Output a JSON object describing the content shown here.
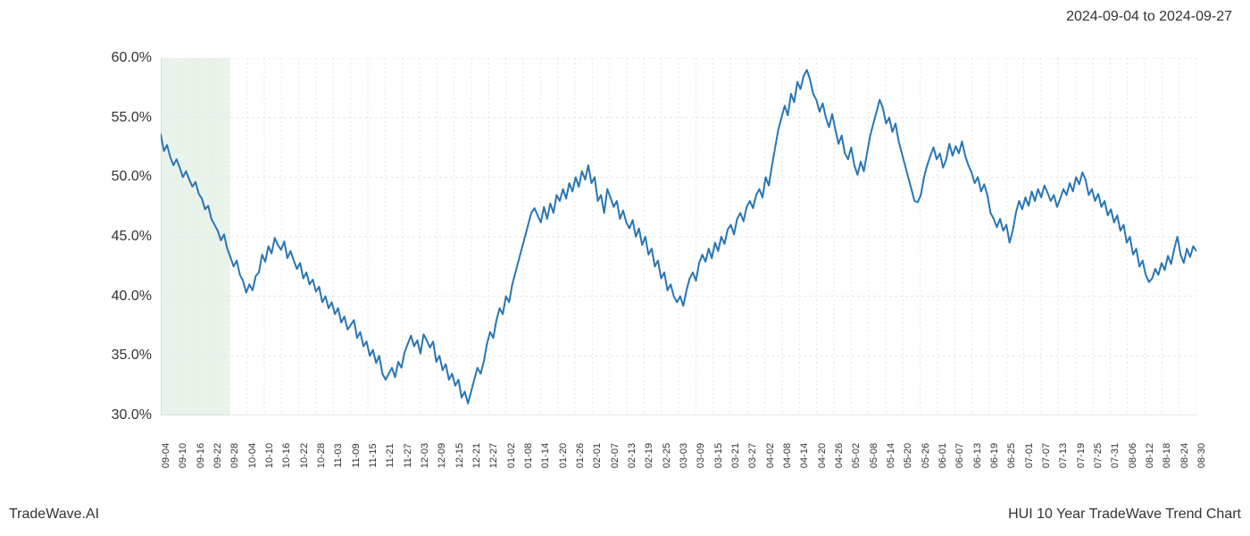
{
  "header": {
    "date_range": "2024-09-04 to 2024-09-27"
  },
  "footer": {
    "left": "TradeWave.AI",
    "right": "HUI 10 Year TradeWave Trend Chart"
  },
  "chart": {
    "type": "line",
    "line_color": "#2875b5",
    "line_width": 2,
    "background_color": "#ffffff",
    "grid_color": "#e6e6e6",
    "highlight_band_color": "#d9e9d8",
    "highlight_band_opacity": 0.55,
    "highlight_start_idx": 0,
    "highlight_end_idx": 4,
    "y_axis": {
      "min": 30.0,
      "max": 60.0,
      "tick_step": 5.0,
      "ticks": [
        30.0,
        35.0,
        40.0,
        45.0,
        50.0,
        55.0,
        60.0
      ],
      "tick_labels": [
        "30.0%",
        "35.0%",
        "40.0%",
        "45.0%",
        "50.0%",
        "55.0%",
        "60.0%"
      ],
      "label_fontsize": 16
    },
    "x_axis": {
      "labels": [
        "09-04",
        "09-10",
        "09-16",
        "09-22",
        "09-28",
        "10-04",
        "10-10",
        "10-16",
        "10-22",
        "10-28",
        "11-03",
        "11-09",
        "11-15",
        "11-21",
        "11-27",
        "12-03",
        "12-09",
        "12-15",
        "12-21",
        "12-27",
        "01-02",
        "01-08",
        "01-14",
        "01-20",
        "01-26",
        "02-01",
        "02-07",
        "02-13",
        "02-19",
        "02-25",
        "03-03",
        "03-09",
        "03-15",
        "03-21",
        "03-27",
        "04-02",
        "04-08",
        "04-14",
        "04-20",
        "04-26",
        "05-02",
        "05-08",
        "05-14",
        "05-20",
        "05-26",
        "06-01",
        "06-07",
        "06-13",
        "06-19",
        "06-25",
        "07-01",
        "07-07",
        "07-13",
        "07-19",
        "07-25",
        "07-31",
        "08-06",
        "08-12",
        "08-18",
        "08-24",
        "08-30"
      ],
      "label_fontsize": 11
    },
    "values": [
      53.6,
      52.2,
      52.7,
      51.7,
      51.0,
      51.5,
      50.8,
      50.0,
      50.5,
      49.8,
      49.2,
      49.6,
      48.6,
      48.2,
      47.3,
      47.6,
      46.5,
      46.0,
      45.5,
      44.7,
      45.2,
      44.0,
      43.3,
      42.5,
      43.0,
      41.8,
      41.3,
      40.3,
      41.0,
      40.5,
      41.7,
      42.0,
      43.5,
      42.9,
      44.2,
      43.6,
      44.9,
      44.3,
      43.9,
      44.6,
      43.2,
      43.8,
      43.0,
      42.3,
      42.8,
      41.5,
      42.0,
      41.0,
      41.4,
      40.4,
      40.8,
      39.5,
      40.0,
      39.0,
      39.5,
      38.5,
      39.0,
      37.8,
      38.3,
      37.2,
      37.6,
      38.0,
      36.5,
      37.0,
      35.8,
      36.2,
      35.0,
      35.5,
      34.4,
      35.0,
      33.5,
      33.0,
      33.5,
      34.0,
      33.2,
      34.5,
      34.0,
      35.3,
      36.0,
      36.7,
      35.8,
      36.3,
      35.2,
      36.8,
      36.3,
      35.7,
      36.2,
      34.5,
      35.0,
      33.8,
      34.3,
      33.0,
      33.5,
      32.5,
      33.0,
      31.5,
      32.0,
      31.0,
      32.0,
      33.0,
      34.0,
      33.5,
      34.5,
      36.0,
      37.0,
      36.5,
      38.0,
      39.0,
      38.5,
      40.0,
      39.5,
      41.0,
      42.0,
      43.0,
      44.0,
      45.0,
      46.0,
      47.0,
      47.4,
      46.8,
      46.2,
      47.5,
      46.5,
      47.8,
      47.0,
      48.5,
      48.0,
      49.0,
      48.2,
      49.5,
      48.8,
      50.0,
      49.2,
      50.5,
      49.8,
      51.0,
      49.5,
      50.0,
      48.0,
      48.5,
      47.0,
      49.0,
      48.3,
      47.5,
      48.0,
      46.5,
      47.2,
      46.2,
      45.7,
      46.4,
      45.0,
      45.7,
      44.3,
      45.0,
      43.5,
      44.0,
      42.5,
      43.0,
      41.5,
      42.0,
      40.5,
      41.0,
      40.0,
      39.5,
      40.0,
      39.2,
      40.5,
      41.5,
      42.0,
      41.3,
      42.8,
      43.5,
      42.9,
      44.0,
      43.2,
      44.5,
      43.8,
      45.0,
      44.4,
      45.6,
      46.0,
      45.2,
      46.5,
      47.0,
      46.3,
      47.5,
      48.0,
      47.4,
      48.5,
      49.0,
      48.3,
      50.0,
      49.3,
      51.0,
      52.5,
      54.0,
      55.0,
      56.0,
      55.2,
      57.0,
      56.3,
      58.0,
      57.4,
      58.5,
      59.0,
      58.2,
      57.0,
      56.5,
      55.5,
      56.2,
      55.0,
      54.2,
      55.3,
      54.0,
      52.8,
      53.5,
      52.0,
      51.5,
      52.5,
      51.0,
      50.2,
      51.3,
      50.5,
      52.0,
      53.5,
      54.5,
      55.5,
      56.5,
      55.8,
      54.5,
      55.0,
      53.8,
      54.5,
      53.0,
      52.0,
      51.0,
      50.0,
      49.0,
      48.0,
      47.9,
      48.5,
      50.0,
      51.0,
      51.8,
      52.5,
      51.5,
      52.0,
      50.8,
      51.5,
      52.8,
      51.8,
      52.6,
      52.0,
      53.0,
      51.8,
      51.0,
      50.4,
      49.5,
      50.0,
      48.8,
      49.4,
      48.5,
      47.0,
      46.5,
      45.8,
      46.5,
      45.5,
      46.0,
      44.5,
      45.5,
      47.0,
      48.0,
      47.3,
      48.3,
      47.6,
      48.8,
      48.0,
      49.0,
      48.3,
      49.3,
      48.7,
      48.0,
      48.5,
      47.5,
      48.2,
      49.0,
      48.5,
      49.5,
      48.8,
      50.0,
      49.4,
      50.4,
      49.8,
      48.5,
      49.0,
      48.0,
      48.6,
      47.5,
      48.0,
      46.8,
      47.3,
      46.2,
      46.8,
      45.5,
      46.0,
      44.5,
      45.0,
      43.5,
      44.0,
      42.5,
      43.0,
      41.8,
      41.2,
      41.5,
      42.3,
      41.8,
      42.8,
      42.2,
      43.4,
      42.7,
      44.0,
      45.0,
      43.5,
      42.8,
      44.0,
      43.3,
      44.2,
      43.8
    ]
  }
}
